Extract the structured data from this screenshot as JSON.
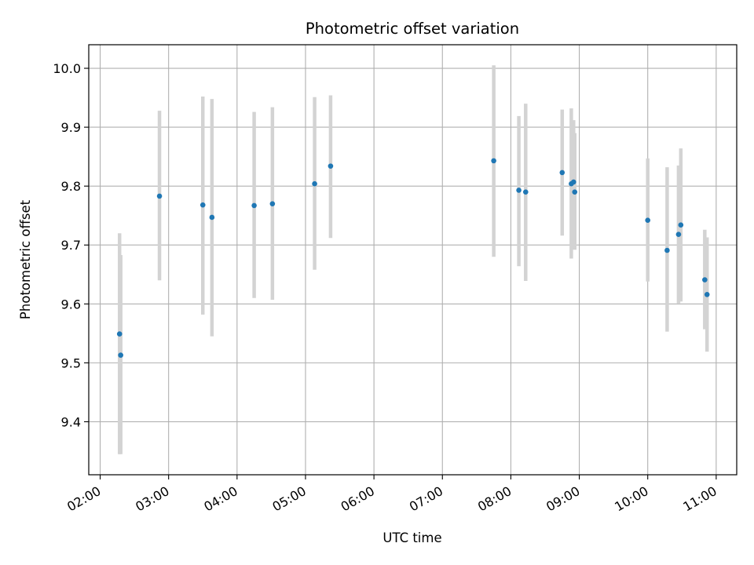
{
  "chart_data": {
    "type": "scatter",
    "title": "Photometric offset variation",
    "xlabel": "UTC time",
    "ylabel": "Photometric offset",
    "x_axis_type": "time",
    "xlim": [
      "01:50",
      "11:18"
    ],
    "ylim": [
      9.31,
      10.04
    ],
    "xticks": [
      "02:00",
      "03:00",
      "04:00",
      "05:00",
      "06:00",
      "07:00",
      "08:00",
      "09:00",
      "10:00",
      "11:00"
    ],
    "yticks": [
      9.4,
      9.5,
      9.6,
      9.7,
      9.8,
      9.9,
      10.0
    ],
    "grid": true,
    "legend": "none",
    "colors": {
      "point": "#1f77b4",
      "errorbar": "#d3d3d3",
      "grid": "#b0b0b0"
    },
    "points": [
      {
        "x": "02:17",
        "y": 9.549,
        "err_low": 9.345,
        "err_high": 9.72
      },
      {
        "x": "02:18",
        "y": 9.513,
        "err_low": 9.345,
        "err_high": 9.683
      },
      {
        "x": "02:52",
        "y": 9.783,
        "err_low": 9.64,
        "err_high": 9.928
      },
      {
        "x": "03:30",
        "y": 9.768,
        "err_low": 9.582,
        "err_high": 9.952
      },
      {
        "x": "03:38",
        "y": 9.747,
        "err_low": 9.545,
        "err_high": 9.948
      },
      {
        "x": "04:15",
        "y": 9.767,
        "err_low": 9.61,
        "err_high": 9.926
      },
      {
        "x": "04:31",
        "y": 9.77,
        "err_low": 9.607,
        "err_high": 9.934
      },
      {
        "x": "05:08",
        "y": 9.804,
        "err_low": 9.658,
        "err_high": 9.951
      },
      {
        "x": "05:22",
        "y": 9.834,
        "err_low": 9.712,
        "err_high": 9.954
      },
      {
        "x": "07:45",
        "y": 9.843,
        "err_low": 9.68,
        "err_high": 10.005
      },
      {
        "x": "08:07",
        "y": 9.793,
        "err_low": 9.664,
        "err_high": 9.919
      },
      {
        "x": "08:13",
        "y": 9.79,
        "err_low": 9.639,
        "err_high": 9.94
      },
      {
        "x": "08:45",
        "y": 9.823,
        "err_low": 9.716,
        "err_high": 9.93
      },
      {
        "x": "08:53",
        "y": 9.804,
        "err_low": 9.677,
        "err_high": 9.932
      },
      {
        "x": "08:55",
        "y": 9.807,
        "err_low": 9.7,
        "err_high": 9.912
      },
      {
        "x": "08:56",
        "y": 9.79,
        "err_low": 9.692,
        "err_high": 9.89
      },
      {
        "x": "10:00",
        "y": 9.742,
        "err_low": 9.638,
        "err_high": 9.847
      },
      {
        "x": "10:17",
        "y": 9.691,
        "err_low": 9.553,
        "err_high": 9.832
      },
      {
        "x": "10:27",
        "y": 9.718,
        "err_low": 9.601,
        "err_high": 9.835
      },
      {
        "x": "10:29",
        "y": 9.734,
        "err_low": 9.604,
        "err_high": 9.864
      },
      {
        "x": "10:50",
        "y": 9.641,
        "err_low": 9.557,
        "err_high": 9.726
      },
      {
        "x": "10:52",
        "y": 9.616,
        "err_low": 9.519,
        "err_high": 9.713
      }
    ]
  }
}
